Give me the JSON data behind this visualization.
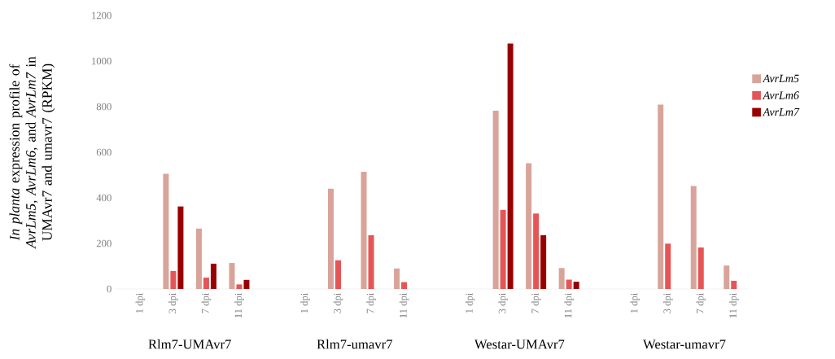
{
  "chart_data": {
    "type": "bar",
    "ylabel": "*In planta* expression profile of *AvrLm5*, *AvrLm6*, and *AvrLm7* in UMAvr7 and umavr7  (RPKM)",
    "categories": [
      "1 dpi",
      "3 dpi",
      "7 dpi",
      "11 dpi",
      "1 dpi",
      "3 dpi",
      "7 dpi",
      "11 dpi",
      "1 dpi",
      "3 dpi",
      "7 dpi",
      "11 dpi",
      "1 dpi",
      "3 dpi",
      "7 dpi",
      "11 dpi"
    ],
    "series": [
      {
        "name": "AvrLm5",
        "color": "#d8a49a",
        "values": [
          0,
          505,
          265,
          114,
          0,
          440,
          514,
          90,
          0,
          782,
          552,
          92,
          0,
          809,
          452,
          103
        ]
      },
      {
        "name": "AvrLm6",
        "color": "#e55555",
        "values": [
          0,
          79,
          50,
          20,
          0,
          126,
          236,
          30,
          0,
          347,
          331,
          41,
          0,
          199,
          182,
          36
        ]
      },
      {
        "name": "AvrLm7",
        "color": "#990000",
        "values": [
          0,
          362,
          111,
          40,
          0,
          0,
          0,
          0,
          0,
          1077,
          236,
          32,
          0,
          0,
          0,
          0
        ]
      }
    ],
    "ylim": [
      0,
      1200
    ],
    "yticks": [
      0,
      200,
      400,
      600,
      800,
      1000,
      1200
    ],
    "legend": "right",
    "annotations": [
      "Rlm7-UMAvr7",
      "Rlm7-umavr7",
      "Westar-UMAvr7",
      "Westar-umavr7"
    ]
  }
}
